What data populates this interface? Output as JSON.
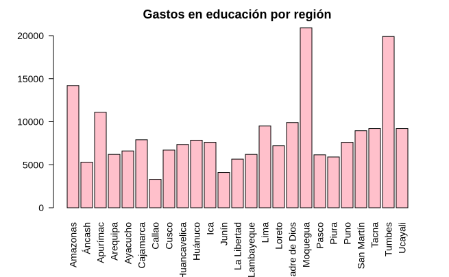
{
  "chart_data": {
    "type": "bar",
    "title": "Gastos en educación por región",
    "xlabel": "",
    "ylabel": "",
    "ylim": [
      0,
      21000
    ],
    "yticks": [
      0,
      5000,
      10000,
      15000,
      20000
    ],
    "bar_color": "#ffc0cb",
    "border_color": "#000000",
    "categories": [
      "Amazonas",
      "Áncash",
      "Apurímac",
      "Arequipa",
      "Ayacucho",
      "Cajamarca",
      "Callao",
      "Cusco",
      "Huancavelica",
      "Huánuco",
      "Ica",
      "Junín",
      "La Libertad",
      "Lambayeque",
      "Lima",
      "Loreto",
      "Madre de Dios",
      "Moquegua",
      "Pasco",
      "Piura",
      "Puno",
      "San Martín",
      "Tacna",
      "Tumbes",
      "Ucayali"
    ],
    "values": [
      14200,
      5300,
      11100,
      6200,
      6600,
      7900,
      3300,
      6700,
      7350,
      7850,
      7600,
      4100,
      5650,
      6200,
      9500,
      7200,
      9900,
      20900,
      6150,
      5900,
      7600,
      8950,
      9200,
      19900,
      9200
    ]
  }
}
